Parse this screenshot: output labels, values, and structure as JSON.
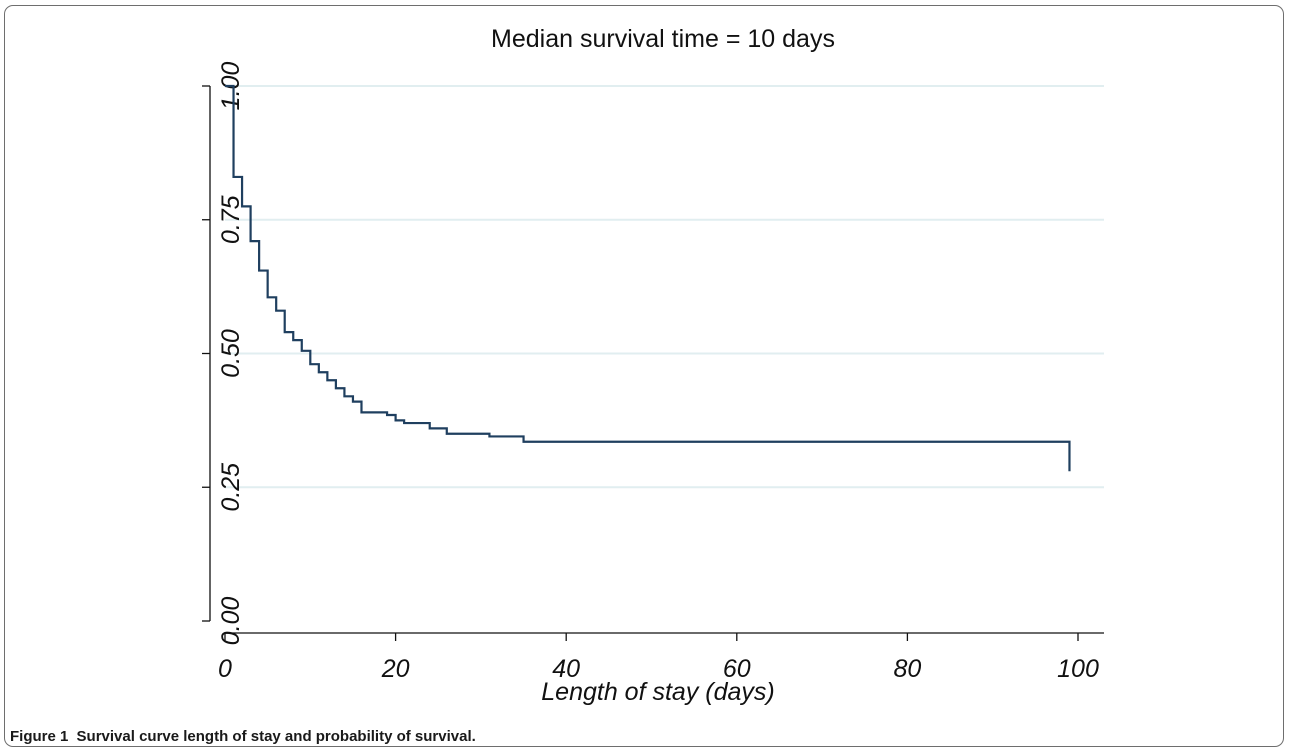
{
  "chart_data": {
    "type": "line",
    "step": true,
    "title": "Median survival time = 10 days",
    "xlabel": "Length of stay (days)",
    "ylabel": "",
    "xlim": [
      0,
      100
    ],
    "ylim": [
      0,
      1
    ],
    "x_ticks": [
      0,
      20,
      40,
      60,
      80,
      100
    ],
    "x_tick_labels": [
      "0",
      "20",
      "40",
      "60",
      "80",
      "100"
    ],
    "y_ticks": [
      0,
      0.25,
      0.5,
      0.75,
      1
    ],
    "y_tick_labels": [
      "0.00",
      "0.25",
      "0.50",
      "0.75",
      "1.00"
    ],
    "grid": "horizontal",
    "line_color": "#1f3f5f",
    "grid_color": "#e1eef0",
    "series": [
      {
        "x": [
          0,
          1,
          2,
          3,
          4,
          5,
          6,
          7,
          8,
          9,
          10,
          11,
          12,
          13,
          14,
          15,
          16,
          19,
          20,
          21,
          24,
          26,
          31,
          35,
          99,
          99
        ],
        "values": [
          1.0,
          0.83,
          0.775,
          0.71,
          0.655,
          0.605,
          0.58,
          0.54,
          0.525,
          0.505,
          0.48,
          0.465,
          0.45,
          0.435,
          0.42,
          0.41,
          0.39,
          0.385,
          0.375,
          0.37,
          0.36,
          0.35,
          0.345,
          0.335,
          0.335,
          0.28
        ]
      }
    ]
  },
  "caption": {
    "label": "Figure 1",
    "text": "Survival curve length of stay and probability of survival."
  }
}
